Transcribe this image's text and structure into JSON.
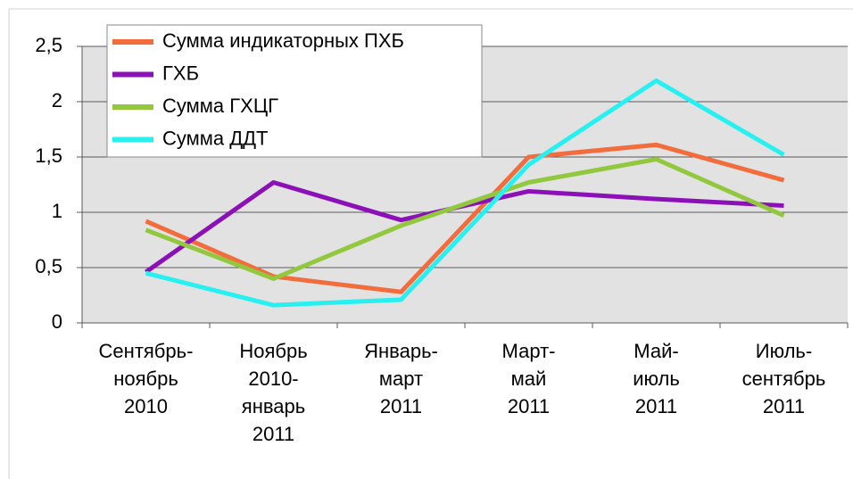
{
  "chart_data": {
    "type": "line",
    "categories": [
      "Сентябрь-\nноябрь\n2010",
      "Ноябрь\n2010-\nянварь\n2011",
      "Январь-\nмарт\n2011",
      "Март-\nмай\n2011",
      "Май-\nиюль\n2011",
      "Июль-\nсентябрь\n2011"
    ],
    "series": [
      {
        "name": "Сумма индикаторных ПХБ",
        "color": "#f26c3c",
        "values": [
          0.92,
          0.42,
          0.28,
          1.5,
          1.61,
          1.29
        ]
      },
      {
        "name": "ГХБ",
        "color": "#8b10b8",
        "values": [
          0.46,
          1.27,
          0.93,
          1.19,
          1.12,
          1.06
        ]
      },
      {
        "name": "Сумма ГХЦГ",
        "color": "#92c83e",
        "values": [
          0.84,
          0.4,
          0.88,
          1.27,
          1.48,
          0.97
        ]
      },
      {
        "name": "Сумма ДДТ",
        "color": "#28f0f0",
        "values": [
          0.45,
          0.16,
          0.21,
          1.43,
          2.19,
          1.52
        ]
      }
    ],
    "ylim": [
      0,
      2.5
    ],
    "yticks": [
      0,
      {
        "value": 0.5,
        "label": "0,5"
      },
      1,
      {
        "value": 1.5,
        "label": "1,5"
      },
      2,
      {
        "value": 2.5,
        "label": "2,5"
      }
    ],
    "grid": true,
    "legend": "top-left"
  }
}
